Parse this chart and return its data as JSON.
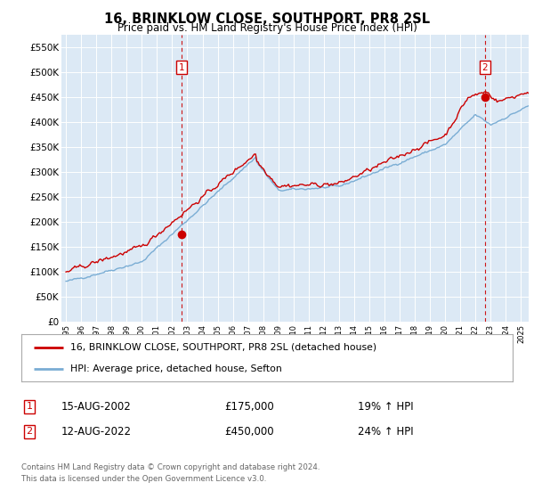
{
  "title": "16, BRINKLOW CLOSE, SOUTHPORT, PR8 2SL",
  "subtitle": "Price paid vs. HM Land Registry's House Price Index (HPI)",
  "legend_line1": "16, BRINKLOW CLOSE, SOUTHPORT, PR8 2SL (detached house)",
  "legend_line2": "HPI: Average price, detached house, Sefton",
  "annotation1_date": "15-AUG-2002",
  "annotation1_price": 175000,
  "annotation1_hpi": "19% ↑ HPI",
  "annotation2_date": "12-AUG-2022",
  "annotation2_price": 450000,
  "annotation2_hpi": "24% ↑ HPI",
  "footer_line1": "Contains HM Land Registry data © Crown copyright and database right 2024.",
  "footer_line2": "This data is licensed under the Open Government Licence v3.0.",
  "bg_color": "#dce9f5",
  "red_line_color": "#cc0000",
  "blue_line_color": "#7aadd4",
  "vline_color": "#cc0000",
  "ylim": [
    0,
    575000
  ],
  "yticks": [
    0,
    50000,
    100000,
    150000,
    200000,
    250000,
    300000,
    350000,
    400000,
    450000,
    500000,
    550000
  ],
  "ytick_labels": [
    "£0",
    "£50K",
    "£100K",
    "£150K",
    "£200K",
    "£250K",
    "£300K",
    "£350K",
    "£400K",
    "£450K",
    "£500K",
    "£550K"
  ],
  "purchase1_x": 2002.625,
  "purchase1_y": 175000,
  "purchase2_x": 2022.625,
  "purchase2_y": 450000,
  "xmin": 1995.0,
  "xmax": 2025.5
}
